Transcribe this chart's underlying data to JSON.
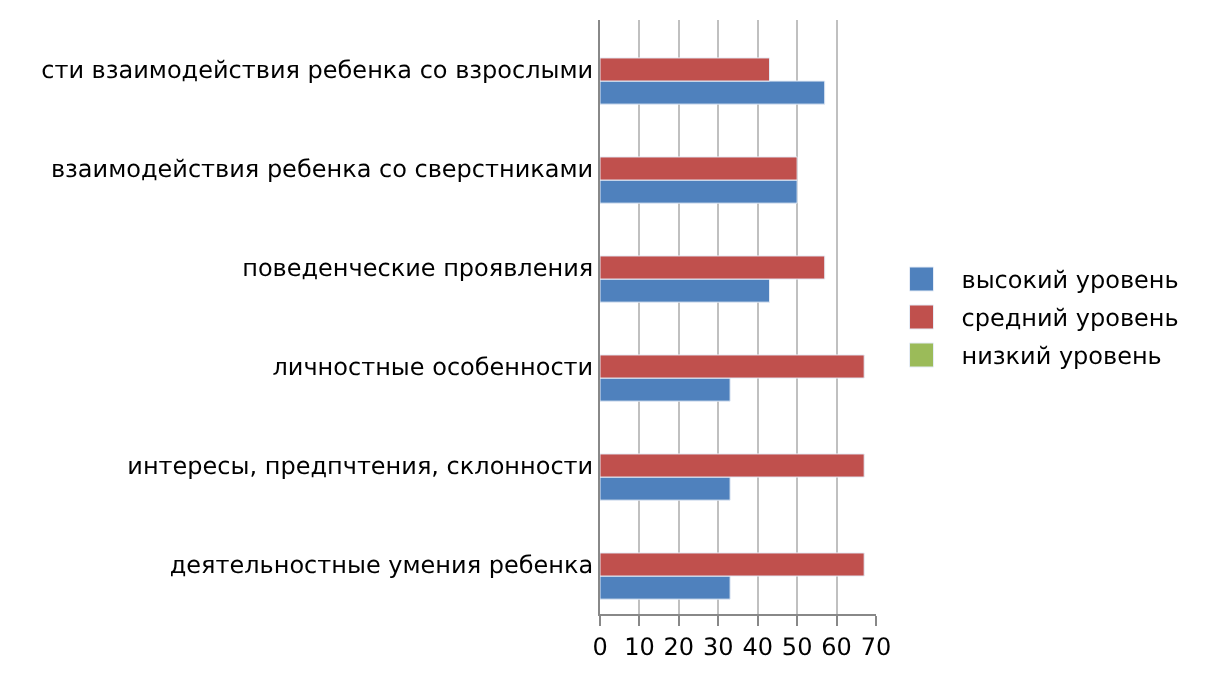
{
  "chart_data": {
    "type": "bar",
    "orientation": "horizontal",
    "categories": [
      "сти взаимодействия ребенка со взрослыми",
      "взаимодействия ребенка со сверстниками",
      "поведенческие проявления",
      "личностные особенности",
      "интересы, предпчтения, склонности",
      "деятельностные умения ребенка"
    ],
    "series": [
      {
        "name": "высокий уровень",
        "color": "#4f81bd",
        "values": [
          57,
          50,
          43,
          33,
          33,
          33
        ]
      },
      {
        "name": "средний уровень",
        "color": "#c0504d",
        "values": [
          43,
          50,
          57,
          67,
          67,
          67
        ]
      },
      {
        "name": "низкий уровень",
        "color": "#9bbb59",
        "values": [
          null,
          null,
          null,
          null,
          null,
          null
        ]
      }
    ],
    "xlim": [
      0,
      70
    ],
    "xticks": [
      0,
      10,
      20,
      30,
      40,
      50,
      60,
      70
    ],
    "grid": "x",
    "legend": "right"
  }
}
